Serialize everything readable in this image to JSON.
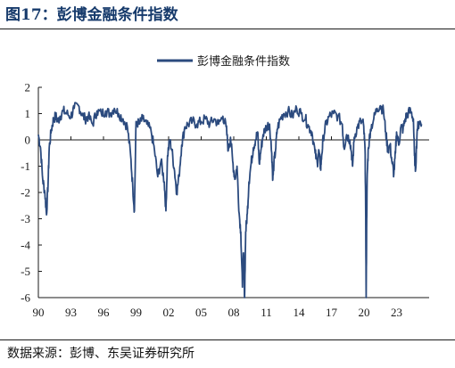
{
  "figure": {
    "title": "图17：彭博金融条件指数",
    "source": "数据来源：彭博、东吴证券研究所"
  },
  "colors": {
    "series": "#2b4a7e",
    "axis": "#1a1a1a",
    "title": "#163a6b"
  },
  "chart_data": {
    "type": "line",
    "title": "",
    "xlabel": "",
    "ylabel": "",
    "xlim": [
      1990,
      2026
    ],
    "ylim": [
      -6,
      2
    ],
    "grid": false,
    "legend_position": "top-center",
    "x_ticks": [
      1990,
      1993,
      1996,
      1999,
      2002,
      2005,
      2008,
      2011,
      2014,
      2017,
      2020,
      2023
    ],
    "x_tick_labels": [
      "90",
      "93",
      "96",
      "99",
      "02",
      "05",
      "08",
      "11",
      "14",
      "17",
      "20",
      "23"
    ],
    "y_ticks": [
      2,
      1,
      0,
      -1,
      -2,
      -3,
      -4,
      -5,
      -6
    ],
    "y_tick_labels": [
      "2",
      "1",
      "0",
      "-1",
      "-2",
      "-3",
      "-4",
      "-5",
      "-6"
    ],
    "series": [
      {
        "name": "彭博金融条件指数",
        "x": [
          1990.0,
          1990.2,
          1990.4,
          1990.6,
          1990.75,
          1990.9,
          1991.0,
          1991.2,
          1991.4,
          1991.6,
          1991.8,
          1992.0,
          1992.3,
          1992.6,
          1993.0,
          1993.3,
          1993.7,
          1994.0,
          1994.3,
          1994.6,
          1995.0,
          1995.4,
          1995.8,
          1996.2,
          1996.6,
          1997.0,
          1997.4,
          1997.8,
          1998.2,
          1998.5,
          1998.7,
          1998.85,
          1999.0,
          1999.3,
          1999.6,
          2000.0,
          2000.4,
          2000.7,
          2001.0,
          2001.3,
          2001.6,
          2001.75,
          2001.9,
          2002.1,
          2002.3,
          2002.55,
          2002.75,
          2002.95,
          2003.2,
          2003.5,
          2003.8,
          2004.2,
          2004.6,
          2005.0,
          2005.4,
          2005.8,
          2006.2,
          2006.6,
          2007.0,
          2007.3,
          2007.5,
          2007.7,
          2007.9,
          2008.1,
          2008.3,
          2008.5,
          2008.65,
          2008.8,
          2008.9,
          2009.0,
          2009.1,
          2009.25,
          2009.4,
          2009.6,
          2009.8,
          2010.0,
          2010.2,
          2010.35,
          2010.5,
          2010.7,
          2011.0,
          2011.3,
          2011.5,
          2011.6,
          2011.7,
          2011.85,
          2012.0,
          2012.3,
          2012.6,
          2013.0,
          2013.4,
          2013.8,
          2014.2,
          2014.6,
          2014.9,
          2015.2,
          2015.5,
          2015.7,
          2015.85,
          2016.0,
          2016.1,
          2016.25,
          2016.5,
          2016.8,
          2017.2,
          2017.6,
          2018.0,
          2018.15,
          2018.4,
          2018.7,
          2018.85,
          2018.95,
          2019.1,
          2019.4,
          2019.7,
          2019.95,
          2020.1,
          2020.15,
          2020.2,
          2020.25,
          2020.3,
          2020.4,
          2020.6,
          2020.9,
          2021.2,
          2021.5,
          2021.8,
          2022.0,
          2022.2,
          2022.4,
          2022.6,
          2022.75,
          2022.9,
          2023.0,
          2023.2,
          2023.4,
          2023.6,
          2023.8,
          2024.0,
          2024.3,
          2024.55,
          2024.65,
          2024.75,
          2024.9,
          2025.1,
          2025.3
        ],
        "values": [
          0.2,
          -0.3,
          -1.5,
          -2.0,
          -2.85,
          -1.6,
          -0.3,
          0.4,
          0.8,
          0.9,
          0.7,
          0.9,
          1.1,
          1.0,
          0.9,
          1.2,
          1.3,
          1.0,
          0.8,
          0.9,
          0.6,
          1.1,
          1.0,
          1.1,
          1.0,
          1.2,
          1.0,
          0.8,
          0.5,
          -0.6,
          -1.8,
          -2.7,
          0.7,
          0.6,
          0.8,
          0.6,
          0.3,
          -0.4,
          -1.4,
          -0.8,
          -1.6,
          -2.7,
          -0.6,
          0.0,
          -0.4,
          -1.2,
          -2.0,
          -1.4,
          -0.2,
          0.5,
          0.6,
          0.7,
          0.6,
          0.7,
          0.8,
          0.6,
          0.8,
          0.6,
          0.9,
          0.5,
          -0.4,
          0.1,
          -0.8,
          -1.5,
          -1.0,
          -2.8,
          -3.5,
          -5.6,
          -4.3,
          -6.0,
          -3.5,
          -2.8,
          -1.6,
          -0.9,
          -0.3,
          0.0,
          0.3,
          -0.9,
          -0.4,
          0.2,
          0.5,
          0.6,
          -0.5,
          -1.5,
          -0.9,
          -0.4,
          0.4,
          0.8,
          1.0,
          1.1,
          0.9,
          1.2,
          1.0,
          0.8,
          0.5,
          0.3,
          -0.5,
          -0.9,
          -0.4,
          -1.1,
          -0.6,
          0.1,
          0.6,
          0.9,
          1.0,
          0.9,
          0.6,
          -0.3,
          0.2,
          0.0,
          -0.5,
          -1.0,
          0.1,
          0.5,
          0.7,
          0.6,
          -0.4,
          -2.5,
          -6.0,
          -3.0,
          -1.3,
          -0.3,
          0.4,
          0.8,
          1.2,
          1.3,
          1.1,
          0.3,
          -0.4,
          -0.2,
          -0.9,
          -1.3,
          -0.5,
          0.3,
          -0.2,
          0.5,
          0.4,
          0.8,
          1.0,
          1.1,
          0.8,
          -0.6,
          -1.15,
          0.4,
          0.7,
          0.6
        ]
      }
    ]
  }
}
